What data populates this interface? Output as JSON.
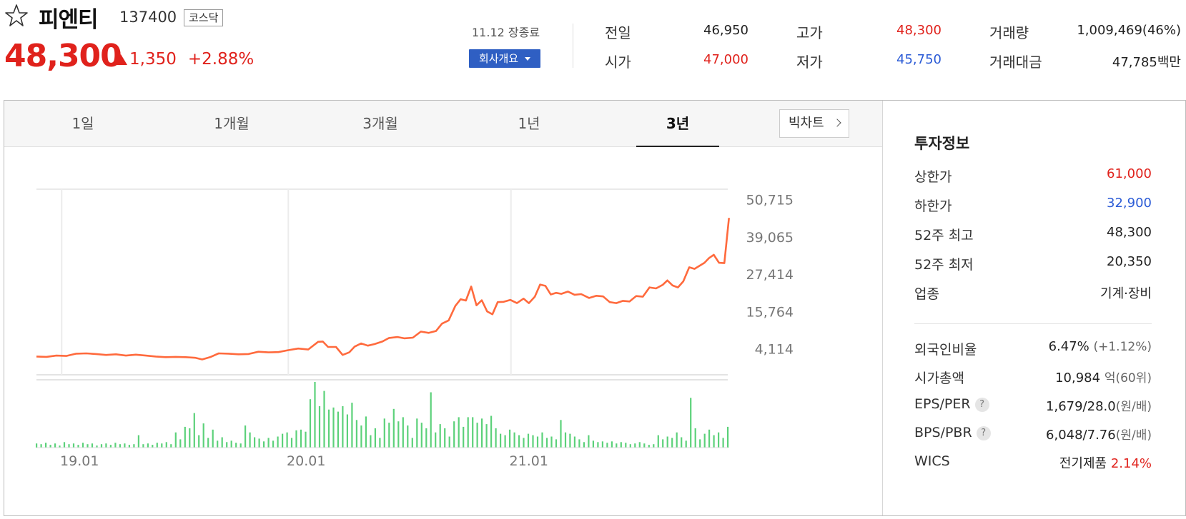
{
  "header": {
    "name": "피엔티",
    "code": "137400",
    "market": "코스닥",
    "price": "48,300",
    "change": "1,350",
    "change_pct": "+2.88%",
    "date_status": "11.12 장종료",
    "company_button": "회사개요",
    "stats": {
      "prev_label": "전일",
      "prev_value": "46,950",
      "open_label": "시가",
      "open_value": "47,000",
      "high_label": "고가",
      "high_value": "48,300",
      "low_label": "저가",
      "low_value": "45,750",
      "volume_label": "거래량",
      "volume_value": "1,009,469(46%)",
      "amount_label": "거래대금",
      "amount_value": "47,785",
      "amount_unit": "백만"
    }
  },
  "tabs": [
    "1일",
    "1개월",
    "3개월",
    "1년",
    "3년"
  ],
  "active_tab": "3년",
  "big_chart_label": "빅차트",
  "invest": {
    "title": "투자정보",
    "upper_label": "상한가",
    "upper_value": "61,000",
    "lower_label": "하한가",
    "lower_value": "32,900",
    "high52_label": "52주 최고",
    "high52_value": "48,300",
    "low52_label": "52주 최저",
    "low52_value": "20,350",
    "sector_label": "업종",
    "sector_value": "기계·장비",
    "foreign_label": "외국인비율",
    "foreign_value": "6.47%",
    "foreign_change": "(+1.12%)",
    "mcap_label": "시가총액",
    "mcap_value": "10,984",
    "mcap_unit": "억",
    "mcap_rank": "(60위)",
    "eps_label": "EPS/PER",
    "eps_value": "1,679/28.0",
    "eps_unit": "(원/배)",
    "bps_label": "BPS/PBR",
    "bps_value": "6,048/7.76",
    "bps_unit": "(원/배)",
    "wics_label": "WICS",
    "wics_value": "전기제품",
    "wics_change": "2.14%"
  },
  "colors": {
    "up": "#e0221c",
    "down": "#2b5bd6",
    "line": "#ff6a3d",
    "volume": "#5cd17a"
  },
  "chart_data": {
    "type": "line",
    "y_ticks": [
      "50,715",
      "39,065",
      "27,414",
      "15,764",
      "4,114"
    ],
    "y_tick_values": [
      50715,
      39065,
      27414,
      15764,
      4114
    ],
    "x_ticks": [
      "19.01",
      "20.01",
      "21.01"
    ],
    "x_tick_positions": [
      0.038,
      0.38,
      0.716
    ],
    "ylim": [
      -4000,
      54000
    ],
    "price_series": [
      [
        0.0,
        1700
      ],
      [
        0.015,
        1600
      ],
      [
        0.03,
        2000
      ],
      [
        0.045,
        1900
      ],
      [
        0.06,
        2600
      ],
      [
        0.075,
        2700
      ],
      [
        0.09,
        2500
      ],
      [
        0.105,
        2200
      ],
      [
        0.12,
        2400
      ],
      [
        0.135,
        2000
      ],
      [
        0.15,
        2300
      ],
      [
        0.165,
        2000
      ],
      [
        0.18,
        1700
      ],
      [
        0.195,
        1500
      ],
      [
        0.21,
        1600
      ],
      [
        0.225,
        1500
      ],
      [
        0.24,
        1300
      ],
      [
        0.25,
        800
      ],
      [
        0.262,
        1500
      ],
      [
        0.275,
        2700
      ],
      [
        0.29,
        2600
      ],
      [
        0.305,
        2400
      ],
      [
        0.32,
        2500
      ],
      [
        0.335,
        3200
      ],
      [
        0.35,
        3000
      ],
      [
        0.365,
        3100
      ],
      [
        0.38,
        3700
      ],
      [
        0.395,
        4200
      ],
      [
        0.41,
        3900
      ],
      [
        0.425,
        6300
      ],
      [
        0.432,
        6400
      ],
      [
        0.44,
        4700
      ],
      [
        0.452,
        4700
      ],
      [
        0.462,
        2200
      ],
      [
        0.472,
        3000
      ],
      [
        0.48,
        4800
      ],
      [
        0.49,
        5800
      ],
      [
        0.5,
        5100
      ],
      [
        0.51,
        5600
      ],
      [
        0.522,
        6400
      ],
      [
        0.532,
        7500
      ],
      [
        0.545,
        7800
      ],
      [
        0.555,
        7400
      ],
      [
        0.568,
        7600
      ],
      [
        0.58,
        9500
      ],
      [
        0.592,
        9100
      ],
      [
        0.603,
        9700
      ],
      [
        0.612,
        12000
      ],
      [
        0.622,
        13000
      ],
      [
        0.632,
        17500
      ],
      [
        0.64,
        19600
      ],
      [
        0.648,
        19200
      ],
      [
        0.656,
        23600
      ],
      [
        0.664,
        17700
      ],
      [
        0.672,
        19300
      ],
      [
        0.68,
        15800
      ],
      [
        0.688,
        14900
      ],
      [
        0.696,
        18700
      ],
      [
        0.705,
        18800
      ],
      [
        0.715,
        19400
      ],
      [
        0.725,
        18400
      ],
      [
        0.735,
        19800
      ],
      [
        0.743,
        18400
      ],
      [
        0.752,
        20400
      ],
      [
        0.76,
        24200
      ],
      [
        0.768,
        23800
      ],
      [
        0.776,
        21100
      ],
      [
        0.784,
        21600
      ],
      [
        0.792,
        21300
      ],
      [
        0.802,
        22000
      ],
      [
        0.812,
        21000
      ],
      [
        0.822,
        21200
      ],
      [
        0.834,
        20000
      ],
      [
        0.845,
        20700
      ],
      [
        0.855,
        20500
      ],
      [
        0.865,
        18700
      ],
      [
        0.875,
        18400
      ],
      [
        0.885,
        19100
      ],
      [
        0.895,
        18900
      ],
      [
        0.905,
        20600
      ],
      [
        0.915,
        20400
      ],
      [
        0.925,
        23300
      ],
      [
        0.935,
        23000
      ],
      [
        0.945,
        24100
      ],
      [
        0.952,
        25500
      ],
      [
        0.96,
        23900
      ],
      [
        0.968,
        23300
      ],
      [
        0.976,
        25200
      ],
      [
        0.985,
        29600
      ],
      [
        0.993,
        29100
      ],
      [
        1.0,
        30000
      ],
      [
        1.008,
        31000
      ],
      [
        1.015,
        32500
      ],
      [
        1.022,
        33500
      ],
      [
        1.03,
        31000
      ],
      [
        1.038,
        30900
      ],
      [
        1.045,
        45000
      ]
    ],
    "volume_series": [
      6,
      5,
      7,
      4,
      6,
      3,
      8,
      5,
      6,
      4,
      7,
      5,
      6,
      3,
      5,
      6,
      4,
      7,
      5,
      6,
      4,
      5,
      18,
      5,
      6,
      4,
      7,
      6,
      8,
      5,
      22,
      12,
      30,
      28,
      50,
      18,
      35,
      14,
      26,
      10,
      15,
      8,
      10,
      7,
      6,
      32,
      22,
      15,
      13,
      9,
      14,
      10,
      16,
      20,
      22,
      14,
      25,
      26,
      23,
      70,
      95,
      60,
      82,
      55,
      58,
      52,
      60,
      48,
      65,
      40,
      32,
      45,
      18,
      28,
      14,
      42,
      36,
      56,
      38,
      44,
      32,
      14,
      42,
      36,
      28,
      80,
      22,
      34,
      28,
      16,
      38,
      44,
      30,
      44,
      44,
      36,
      42,
      34,
      46,
      28,
      20,
      18,
      26,
      22,
      18,
      14,
      20,
      18,
      16,
      22,
      14,
      16,
      12,
      40,
      22,
      20,
      16,
      12,
      8,
      18,
      10,
      8,
      9,
      7,
      9,
      6,
      8,
      7,
      5,
      6,
      8,
      6,
      4,
      5,
      18,
      12,
      16,
      14,
      22,
      15,
      10,
      72,
      28,
      12,
      20,
      26,
      18,
      22,
      14,
      30
    ]
  }
}
